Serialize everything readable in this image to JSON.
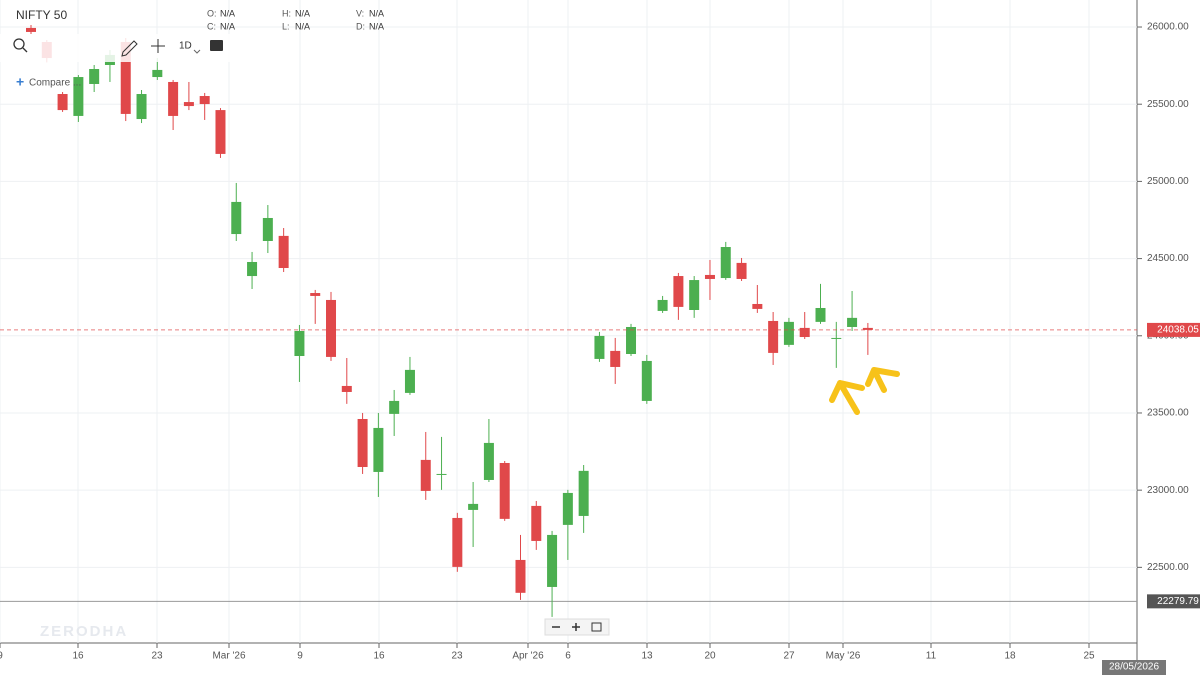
{
  "header": {
    "symbol": "NIFTY 50",
    "ohlc": [
      {
        "key": "O:",
        "value": "N/A"
      },
      {
        "key": "H:",
        "value": "N/A"
      },
      {
        "key": "V:",
        "value": "N/A"
      },
      {
        "key": "C:",
        "value": "N/A"
      },
      {
        "key": "L:",
        "value": "N/A"
      },
      {
        "key": "D:",
        "value": "N/A"
      }
    ],
    "interval": "1D",
    "compare": "Compare ...",
    "watermark": "ZERODHA",
    "cursor_date": "28/05/2026"
  },
  "chart_data": {
    "type": "candlestick",
    "up_color": "#4caf50",
    "down_color": "#e0484a",
    "grid": true,
    "categories": [
      null,
      null,
      null,
      null,
      null,
      null,
      null,
      null,
      null,
      null,
      null,
      null,
      null,
      null,
      null,
      null,
      null,
      null,
      null,
      null,
      null,
      null,
      null,
      null,
      null,
      null,
      null,
      null,
      null,
      null,
      null,
      null,
      null,
      null,
      null,
      null,
      null,
      null,
      null,
      null,
      null,
      null,
      null,
      null,
      null,
      null,
      null,
      null,
      null,
      null,
      null,
      null,
      null,
      null
    ],
    "open": [
      25994,
      25903,
      25566,
      25424,
      25631,
      25754,
      25903,
      25404,
      25676,
      25644,
      25514,
      25553,
      25462,
      24659,
      24387,
      24614,
      24647,
      23869,
      24277,
      24232,
      23675,
      23461,
      23118,
      23494,
      23630,
      23196,
      23105,
      22820,
      22872,
      23066,
      23176,
      22548,
      22898,
      22373,
      22775,
      22833,
      23850,
      23902,
      23882,
      23578,
      24161,
      24387,
      24167,
      24394,
      24374,
      24472,
      24206,
      24096,
      23941,
      24051,
      24090,
      23986,
      24057,
      24051
    ],
    "high": [
      26013,
      25916,
      25579,
      25689,
      25754,
      25851,
      25929,
      25592,
      25799,
      25657,
      25644,
      25573,
      25475,
      24990,
      24543,
      24847,
      24698,
      24070,
      24297,
      24284,
      23856,
      23500,
      23500,
      23649,
      23863,
      23377,
      23345,
      22853,
      23053,
      23461,
      23189,
      22710,
      22930,
      22736,
      23002,
      23163,
      24025,
      23986,
      24077,
      23876,
      24258,
      24407,
      24387,
      24491,
      24608,
      24504,
      24329,
      24154,
      24116,
      24154,
      24336,
      24090,
      24290,
      24083
    ],
    "low": [
      25955,
      25773,
      25450,
      25385,
      25579,
      25644,
      25391,
      25378,
      25657,
      25333,
      25462,
      25398,
      25152,
      24614,
      24303,
      24536,
      24413,
      23701,
      24077,
      23837,
      23559,
      23105,
      22956,
      23351,
      23617,
      22937,
      23002,
      22471,
      22632,
      23053,
      22801,
      22289,
      22613,
      22179,
      22548,
      22723,
      23831,
      23688,
      23869,
      23559,
      24148,
      24103,
      24116,
      24232,
      24362,
      24355,
      24148,
      23811,
      23928,
      23979,
      24077,
      23792,
      24031,
      23876
    ],
    "close": [
      25968,
      25799,
      25462,
      25676,
      25728,
      25819,
      25437,
      25566,
      25722,
      25424,
      25488,
      25501,
      25178,
      24867,
      24478,
      24763,
      24439,
      24031,
      24258,
      23863,
      23636,
      23150,
      23403,
      23578,
      23779,
      22995,
      23105,
      22503,
      22911,
      23306,
      22814,
      22335,
      22671,
      22710,
      22982,
      23125,
      23999,
      23798,
      24057,
      23837,
      24232,
      24187,
      24361,
      24368,
      24575,
      24368,
      24174,
      23889,
      24090,
      23992,
      24180,
      23986,
      24116,
      24038.05
    ],
    "ylim": [
      22010,
      26175
    ],
    "yticks": [
      {
        "value": 22500,
        "label": "22500.00"
      },
      {
        "value": 23000,
        "label": "23000.00"
      },
      {
        "value": 23500,
        "label": "23500.00"
      },
      {
        "value": 24000,
        "label": "24000.00"
      },
      {
        "value": 24500,
        "label": "24500.00"
      },
      {
        "value": 25000,
        "label": "25000.00"
      },
      {
        "value": 25500,
        "label": "25500.00"
      },
      {
        "value": 26000,
        "label": "26000.00"
      }
    ],
    "x_labels": [
      "9",
      "16",
      "23",
      "Mar '26",
      "9",
      "16",
      "23",
      "Apr '26",
      "6",
      "13",
      "20",
      "27",
      "May '26",
      "11",
      "18",
      "25"
    ],
    "last_price": 24038.05,
    "last_price_color": "#e0484a",
    "marker_price": 22279.79,
    "marker_color": "#555555"
  }
}
